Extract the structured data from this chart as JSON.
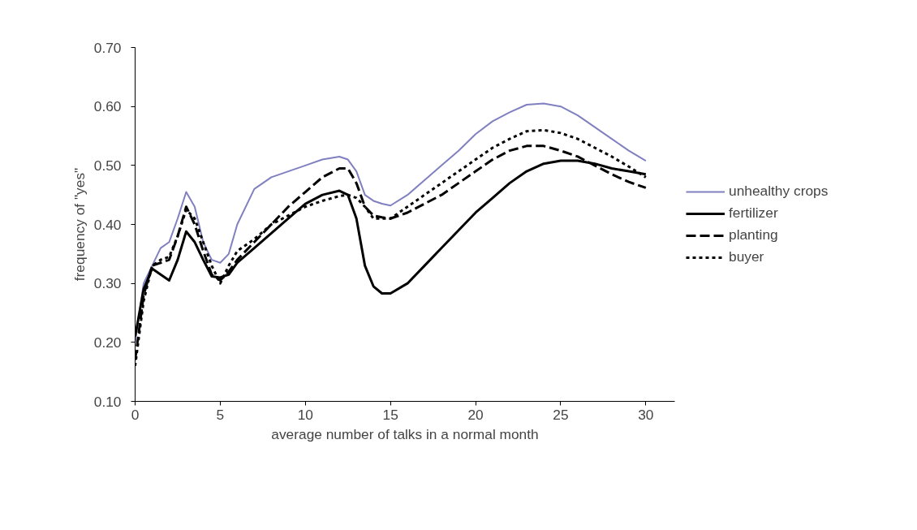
{
  "chart_data": {
    "type": "line",
    "xlabel": "average number of talks in a normal month",
    "ylabel": "frequency of \"yes\"",
    "xlim": [
      0,
      31.7
    ],
    "ylim": [
      0.1,
      0.7
    ],
    "xticks": [
      0,
      5,
      10,
      15,
      20,
      25,
      30
    ],
    "yticks": [
      {
        "value": 0.1,
        "label": "0.10"
      },
      {
        "value": 0.2,
        "label": "0.20"
      },
      {
        "value": 0.3,
        "label": "0.30"
      },
      {
        "value": 0.4,
        "label": "0.40"
      },
      {
        "value": 0.5,
        "label": "0.50"
      },
      {
        "value": 0.6,
        "label": "0.60"
      },
      {
        "value": 0.7,
        "label": "0.70"
      }
    ],
    "grid": false,
    "legend": "right",
    "marker": "none",
    "x": [
      0,
      0.5,
      1,
      1.5,
      2,
      2.5,
      3,
      3.5,
      4,
      4.5,
      5,
      5.5,
      6,
      7,
      8,
      9,
      10,
      11,
      12,
      12.5,
      13,
      13.5,
      14,
      14.5,
      15,
      16,
      17,
      18,
      19,
      20,
      21,
      22,
      23,
      24,
      25,
      26,
      27,
      28,
      29,
      30
    ],
    "series": [
      {
        "name": "unhealthy crops",
        "color": "#8080c0",
        "line_style": "solid",
        "values": [
          0.2,
          0.3,
          0.33,
          0.36,
          0.37,
          0.41,
          0.455,
          0.43,
          0.37,
          0.34,
          0.335,
          0.35,
          0.4,
          0.46,
          0.48,
          0.49,
          0.5,
          0.51,
          0.515,
          0.51,
          0.49,
          0.45,
          0.44,
          0.435,
          0.432,
          0.45,
          0.475,
          0.5,
          0.525,
          0.553,
          0.575,
          0.59,
          0.603,
          0.605,
          0.6,
          0.585,
          0.565,
          0.545,
          0.525,
          0.508
        ]
      },
      {
        "name": "fertilizer",
        "color": "#000000",
        "line_style": "solid",
        "values": [
          0.21,
          0.29,
          0.325,
          0.315,
          0.305,
          0.34,
          0.388,
          0.37,
          0.34,
          0.312,
          0.31,
          0.315,
          0.335,
          0.36,
          0.385,
          0.41,
          0.435,
          0.45,
          0.457,
          0.45,
          0.41,
          0.33,
          0.295,
          0.283,
          0.283,
          0.3,
          0.33,
          0.36,
          0.39,
          0.42,
          0.445,
          0.47,
          0.49,
          0.503,
          0.508,
          0.508,
          0.503,
          0.495,
          0.49,
          0.485
        ]
      },
      {
        "name": "planting",
        "color": "#000000",
        "line_style": "dashed",
        "values": [
          0.17,
          0.28,
          0.33,
          0.335,
          0.34,
          0.38,
          0.43,
          0.4,
          0.355,
          0.315,
          0.305,
          0.32,
          0.34,
          0.37,
          0.4,
          0.43,
          0.455,
          0.48,
          0.495,
          0.495,
          0.47,
          0.43,
          0.415,
          0.412,
          0.41,
          0.42,
          0.435,
          0.45,
          0.47,
          0.49,
          0.51,
          0.525,
          0.533,
          0.533,
          0.525,
          0.515,
          0.5,
          0.485,
          0.472,
          0.462
        ]
      },
      {
        "name": "buyer",
        "color": "#000000",
        "line_style": "dotted",
        "values": [
          0.16,
          0.27,
          0.33,
          0.34,
          0.345,
          0.38,
          0.425,
          0.41,
          0.37,
          0.33,
          0.3,
          0.33,
          0.355,
          0.375,
          0.4,
          0.415,
          0.43,
          0.44,
          0.448,
          0.45,
          0.445,
          0.43,
          0.41,
          0.41,
          0.41,
          0.43,
          0.45,
          0.47,
          0.49,
          0.51,
          0.53,
          0.545,
          0.558,
          0.56,
          0.555,
          0.545,
          0.53,
          0.515,
          0.498,
          0.48
        ]
      }
    ]
  }
}
